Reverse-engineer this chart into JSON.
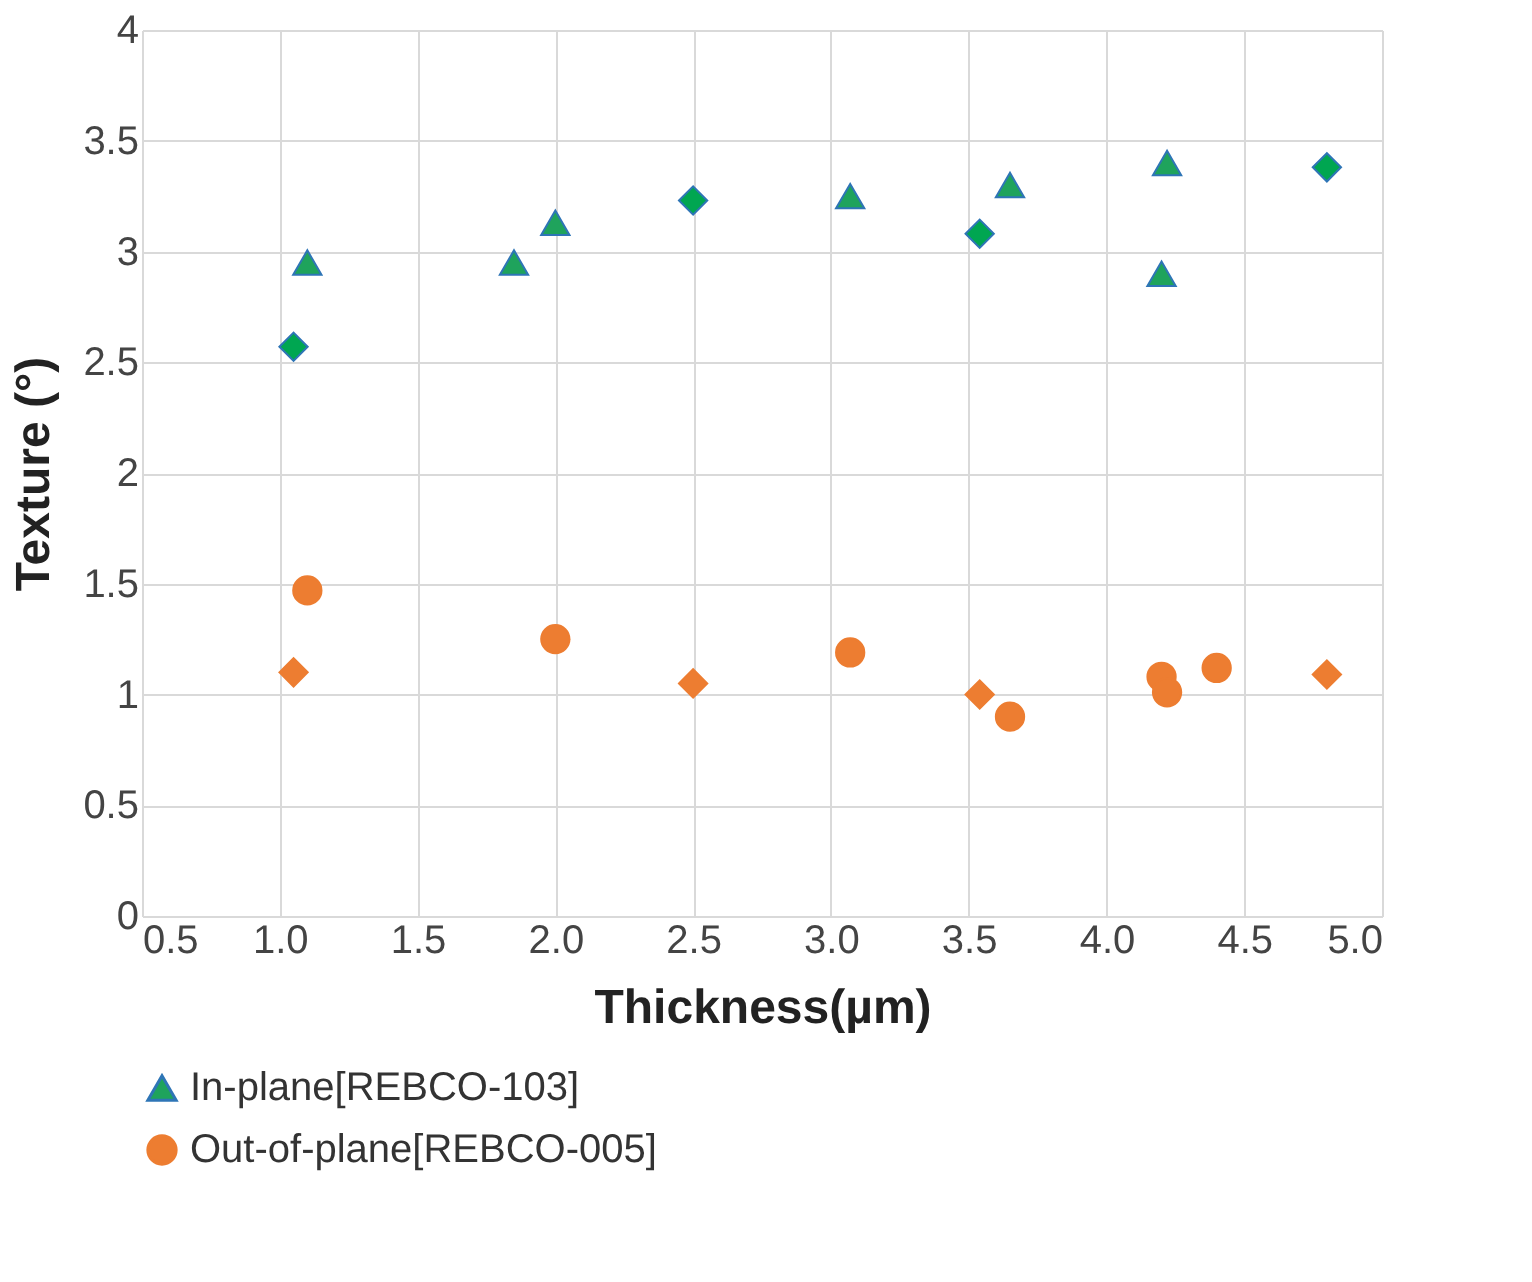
{
  "chart_data": {
    "type": "scatter",
    "xlabel": "Thickness(µm)",
    "ylabel": "Texture (°)",
    "xlim": [
      0.5,
      5.0
    ],
    "xticks": [
      0.5,
      {
        "value": 1,
        "label": "1.0"
      },
      1.5,
      {
        "value": 2,
        "label": "2.0"
      },
      2.5,
      {
        "value": 3,
        "label": "3.0"
      },
      3.5,
      {
        "value": 4,
        "label": "4.0"
      },
      4.5,
      {
        "value": 5,
        "label": "5.0"
      }
    ],
    "ylim": [
      0,
      4
    ],
    "yticks": [
      0,
      0.5,
      1,
      1.5,
      2,
      2.5,
      3,
      3.5,
      4
    ],
    "grid": true,
    "legend": "bottom",
    "series": [
      {
        "name": "In-plane[REBCO-103]",
        "color": "#1fa35c",
        "marker": "triangle",
        "x": [
          1.1,
          1.85,
          2.0,
          3.07,
          3.65,
          4.22,
          4.2
        ],
        "values": [
          2.95,
          2.95,
          3.13,
          3.25,
          3.3,
          3.4,
          2.9
        ]
      },
      {
        "name": "Out-of-plane[REBCO-005]",
        "color": "#ed7d31",
        "marker": "circle",
        "x": [
          1.1,
          2.0,
          3.07,
          3.65,
          4.2,
          4.22,
          4.4
        ],
        "values": [
          1.47,
          1.25,
          1.19,
          0.9,
          1.08,
          1.01,
          1.12
        ]
      },
      {
        "color": "#00a651",
        "marker": "diamond",
        "x": [
          1.05,
          2.5,
          3.54,
          4.8
        ],
        "values": [
          2.57,
          3.23,
          3.08,
          3.38
        ]
      },
      {
        "color": "#ed7d31",
        "marker": "diamond",
        "x": [
          1.05,
          2.5,
          3.54,
          4.8
        ],
        "values": [
          1.1,
          1.05,
          1.0,
          1.09
        ]
      }
    ]
  }
}
